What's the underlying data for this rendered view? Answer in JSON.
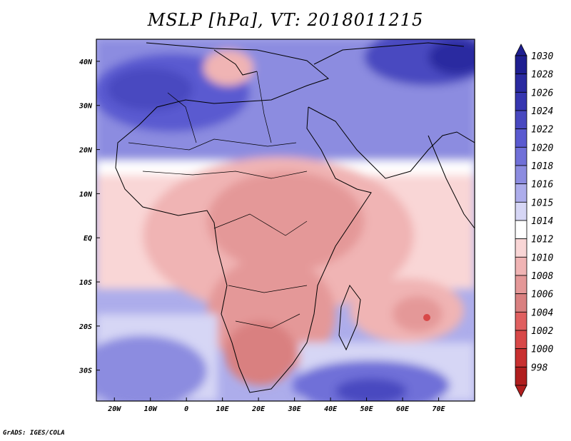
{
  "title": "MSLP [hPa], VT: 2018011215",
  "credit": "GrADS: IGES/COLA",
  "map": {
    "lon_range": [
      -25,
      80
    ],
    "lat_range": [
      -37,
      45
    ],
    "x_ticks": [
      {
        "label": "20W",
        "lon": -20
      },
      {
        "label": "10W",
        "lon": -10
      },
      {
        "label": "0",
        "lon": 0
      },
      {
        "label": "10E",
        "lon": 10
      },
      {
        "label": "20E",
        "lon": 20
      },
      {
        "label": "30E",
        "lon": 30
      },
      {
        "label": "40E",
        "lon": 40
      },
      {
        "label": "50E",
        "lon": 50
      },
      {
        "label": "60E",
        "lon": 60
      },
      {
        "label": "70E",
        "lon": 70
      }
    ],
    "y_ticks": [
      {
        "label": "40N",
        "lat": 40
      },
      {
        "label": "30N",
        "lat": 30
      },
      {
        "label": "20N",
        "lat": 20
      },
      {
        "label": "10N",
        "lat": 10
      },
      {
        "label": "EQ",
        "lat": 0
      },
      {
        "label": "10S",
        "lat": -10
      },
      {
        "label": "20S",
        "lat": -20
      },
      {
        "label": "30S",
        "lat": -30
      }
    ]
  },
  "colorbar": {
    "levels": [
      {
        "label": "1030",
        "color": "#1e1e90"
      },
      {
        "label": "1028",
        "color": "#2a2aa0"
      },
      {
        "label": "1026",
        "color": "#3636b0"
      },
      {
        "label": "1024",
        "color": "#4848c0"
      },
      {
        "label": "1022",
        "color": "#5a5ad0"
      },
      {
        "label": "1020",
        "color": "#7070d8"
      },
      {
        "label": "1018",
        "color": "#8c8ce0"
      },
      {
        "label": "1016",
        "color": "#adadeb"
      },
      {
        "label": "1015",
        "color": "#d6d6f5"
      },
      {
        "label": "1014",
        "color": "#ffffff"
      },
      {
        "label": "1012",
        "color": "#f9d6d6"
      },
      {
        "label": "1010",
        "color": "#f0b4b4"
      },
      {
        "label": "1008",
        "color": "#e49898"
      },
      {
        "label": "1006",
        "color": "#d98080"
      },
      {
        "label": "1004",
        "color": "#e06060"
      },
      {
        "label": "1002",
        "color": "#d84848"
      },
      {
        "label": "1000",
        "color": "#c83030"
      },
      {
        "label": "998",
        "color": "#b01e1e"
      }
    ]
  }
}
